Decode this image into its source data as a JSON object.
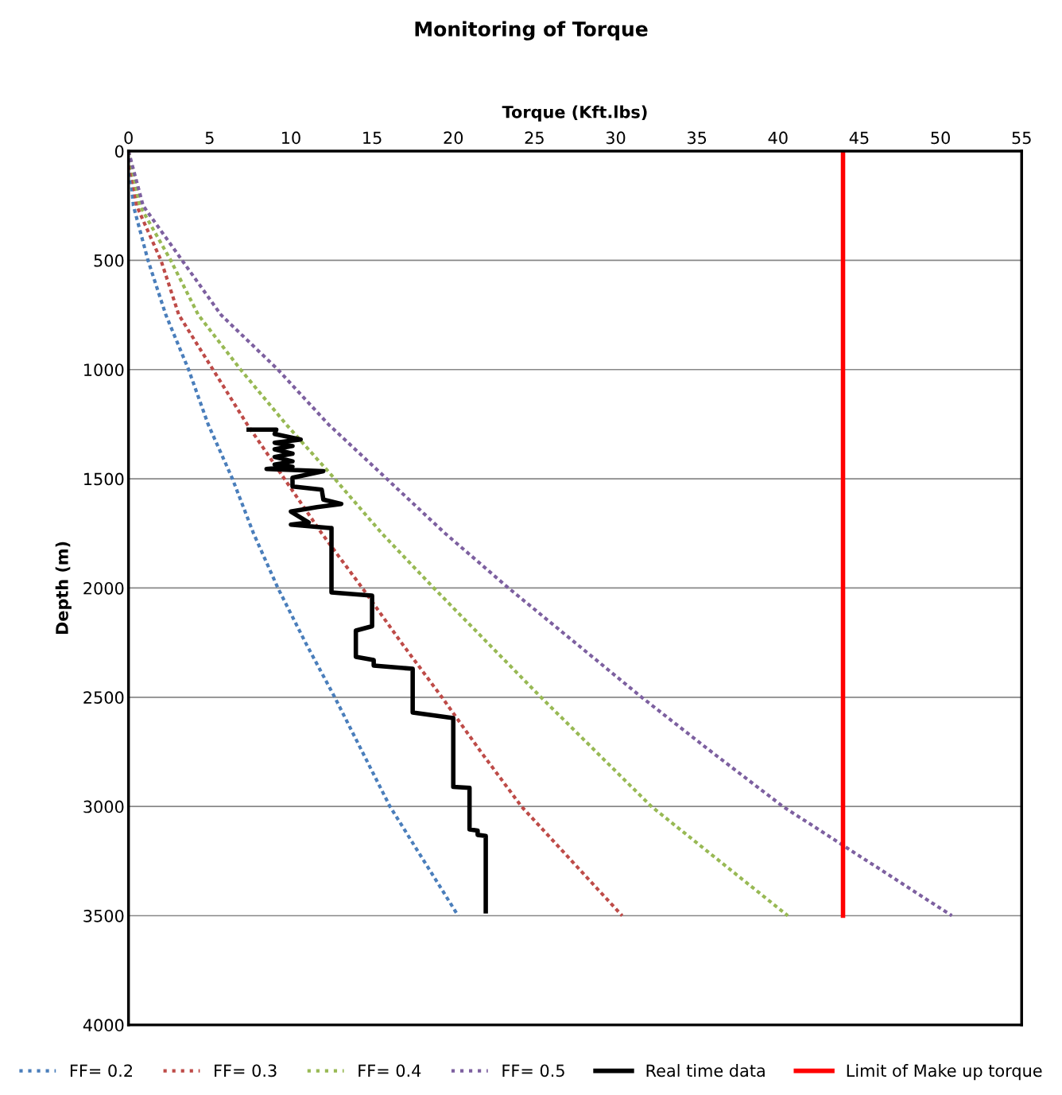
{
  "chart_data": {
    "type": "line",
    "title": "Monitoring of Torque",
    "xlabel": "Torque (Kft.lbs)",
    "ylabel": "Depth (m)",
    "xlim": [
      0,
      55
    ],
    "xticks": [
      0,
      5,
      10,
      15,
      20,
      25,
      30,
      35,
      40,
      45,
      50,
      55
    ],
    "ylim": [
      4000,
      0
    ],
    "yticks": [
      0,
      500,
      1000,
      1500,
      2000,
      2500,
      3000,
      3500,
      4000
    ],
    "grid": "y",
    "legend": "bottom",
    "marker": "none",
    "series": [
      {
        "name": "FF= 0.2",
        "color": "#4a7ebb",
        "line_style": "dotted",
        "x": [
          0,
          0.3,
          1.2,
          2.3,
          3.7,
          4.9,
          6.4,
          7.7,
          9.2,
          10.9,
          12.7,
          14.4,
          16.1,
          18.2,
          20.3
        ],
        "values": [
          0,
          250,
          500,
          750,
          1000,
          1250,
          1500,
          1750,
          2000,
          2250,
          2500,
          2750,
          3000,
          3250,
          3500
        ]
      },
      {
        "name": "FF= 0.3",
        "color": "#be4b48",
        "line_style": "dotted",
        "x": [
          0,
          0.5,
          2.0,
          3.1,
          5.2,
          7.3,
          9.6,
          11.9,
          14.4,
          16.8,
          19.3,
          21.7,
          24.2,
          27.3,
          30.4
        ],
        "values": [
          0,
          250,
          500,
          750,
          1000,
          1250,
          1500,
          1750,
          2000,
          2250,
          2500,
          2750,
          3000,
          3250,
          3500
        ]
      },
      {
        "name": "FF= 0.4",
        "color": "#98b954",
        "line_style": "dotted",
        "x": [
          0,
          0.7,
          2.6,
          4.3,
          6.9,
          9.7,
          12.7,
          15.6,
          18.8,
          22.1,
          25.4,
          28.8,
          32.2,
          36.4,
          40.6
        ],
        "values": [
          0,
          250,
          500,
          750,
          1000,
          1250,
          1500,
          1750,
          2000,
          2250,
          2500,
          2750,
          3000,
          3250,
          3500
        ]
      },
      {
        "name": "FF= 0.5",
        "color": "#7d60a0",
        "line_style": "dotted",
        "x": [
          0,
          0.9,
          3.3,
          5.7,
          9.2,
          12.3,
          15.9,
          19.5,
          23.4,
          27.5,
          31.6,
          35.9,
          40.3,
          45.5,
          50.7
        ],
        "values": [
          0,
          250,
          500,
          750,
          1000,
          1250,
          1500,
          1750,
          2000,
          2250,
          2500,
          2750,
          3000,
          3250,
          3500
        ]
      },
      {
        "name": "Real time data",
        "color": "#000000",
        "line_style": "solid",
        "x": [
          7.4,
          9.1,
          9.0,
          10.6,
          9.0,
          10.1,
          9.0,
          10.1,
          9.0,
          10.1,
          9.0,
          10.1,
          8.5,
          12.0,
          10.1,
          10.1,
          11.9,
          12.0,
          13.1,
          11.6,
          10.0,
          11.1,
          10.0,
          12.4,
          12.5,
          12.5,
          15.0,
          15.0,
          14.0,
          14.0,
          15.1,
          15.1,
          17.5,
          17.5,
          20.0,
          20.0,
          21.0,
          21.0,
          21.5,
          21.5,
          22.0,
          22.0
        ],
        "values": [
          1275,
          1275,
          1295,
          1320,
          1335,
          1350,
          1365,
          1385,
          1400,
          1420,
          1435,
          1445,
          1455,
          1465,
          1495,
          1535,
          1550,
          1595,
          1615,
          1630,
          1650,
          1700,
          1710,
          1725,
          1725,
          2020,
          2035,
          2175,
          2195,
          2315,
          2330,
          2355,
          2370,
          2570,
          2595,
          2910,
          2915,
          3105,
          3110,
          3130,
          3135,
          3480
        ]
      },
      {
        "name": "Limit of Make up torque",
        "color": "#ff0000",
        "line_style": "solid",
        "x": [
          44,
          44
        ],
        "values": [
          0,
          3500
        ]
      }
    ]
  }
}
